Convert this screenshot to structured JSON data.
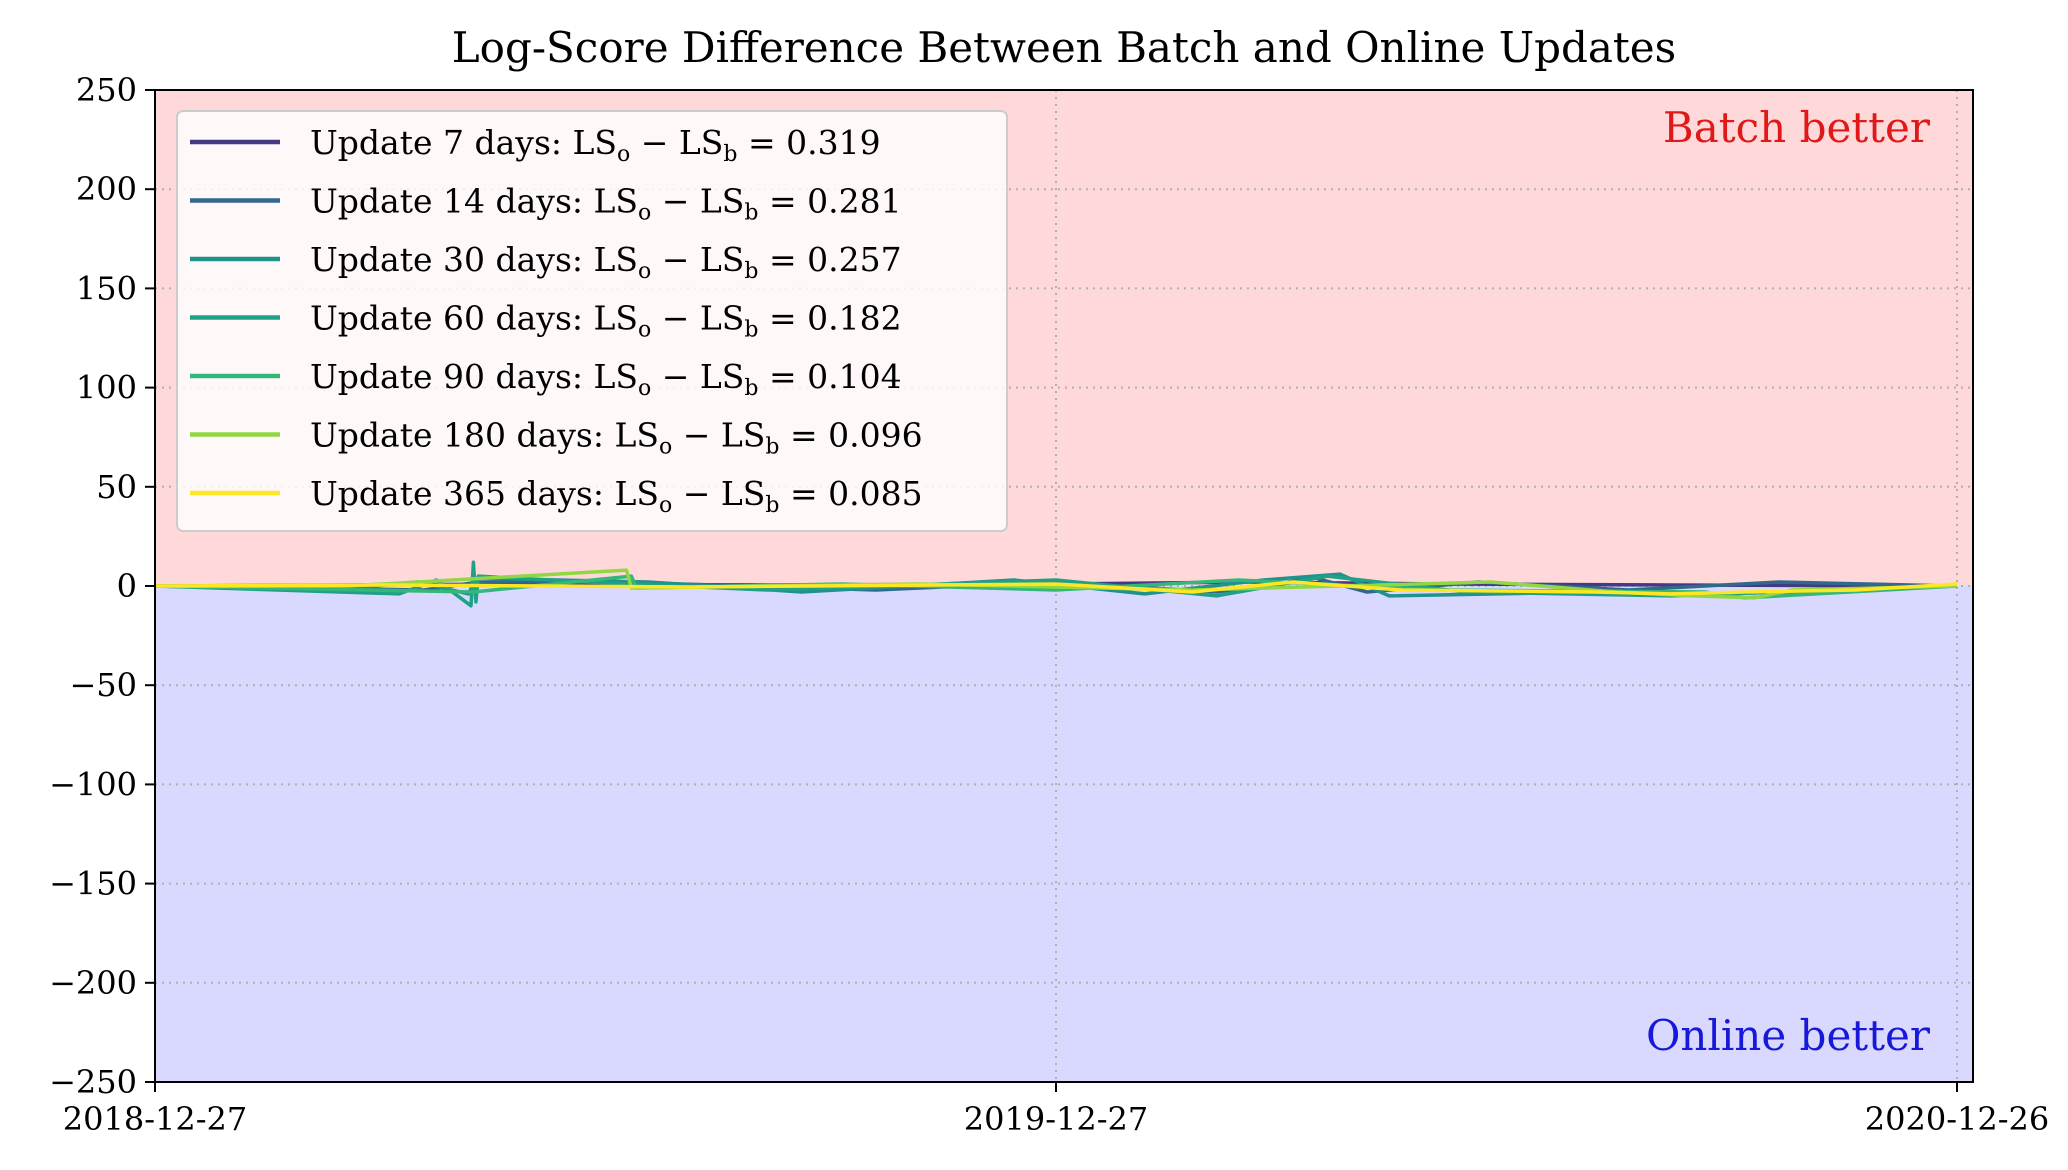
{
  "chart_data": {
    "type": "line",
    "title": "Log-Score Difference Between Batch and Online Updates",
    "xlabel": "",
    "ylabel": "",
    "x_range": [
      "2018-12-27",
      "2020-12-26"
    ],
    "x_ticks": [
      "2018-12-27",
      "2019-12-27",
      "2020-12-26"
    ],
    "ylim": [
      -250,
      250
    ],
    "y_ticks": [
      250,
      200,
      150,
      100,
      50,
      0,
      -50,
      -100,
      -150,
      -200,
      -250
    ],
    "y_tick_labels": [
      "250",
      "200",
      "150",
      "100",
      "50",
      "0",
      "−50",
      "−100",
      "−150",
      "−200",
      "−250"
    ],
    "grid": "dotted",
    "legend_position": "upper-left",
    "regions": [
      {
        "label": "Batch better",
        "y_from": 0,
        "y_to": 250,
        "fill": "#ffd9d9",
        "label_color": "#e01818"
      },
      {
        "label": "Online better",
        "y_from": -250,
        "y_to": 0,
        "fill": "#d9d9ff",
        "label_color": "#1818d8"
      }
    ],
    "legend_entries": [
      {
        "prefix": "Update 7 days:",
        "value": "0.319",
        "color": "#443983"
      },
      {
        "prefix": "Update 14 days:",
        "value": "0.281",
        "color": "#31688e"
      },
      {
        "prefix": "Update 30 days:",
        "value": "0.257",
        "color": "#21918c"
      },
      {
        "prefix": "Update 60 days:",
        "value": "0.182",
        "color": "#1fa187"
      },
      {
        "prefix": "Update 90 days:",
        "value": "0.104",
        "color": "#35b779"
      },
      {
        "prefix": "Update 180 days:",
        "value": "0.096",
        "color": "#90d743"
      },
      {
        "prefix": "Update 365 days:",
        "value": "0.085",
        "color": "#fde725"
      }
    ],
    "series": [
      {
        "color": "#443983",
        "points": [
          [
            "2018-12-27",
            0
          ],
          [
            "2019-03-15",
            0.5
          ],
          [
            "2019-06-01",
            1
          ],
          [
            "2019-09-01",
            0.5
          ],
          [
            "2019-12-27",
            1
          ],
          [
            "2020-03-15",
            2
          ],
          [
            "2020-06-01",
            1
          ],
          [
            "2020-09-01",
            0.5
          ],
          [
            "2020-12-26",
            0
          ]
        ]
      },
      {
        "color": "#31688e",
        "points": [
          [
            "2018-12-27",
            0
          ],
          [
            "2019-04-15",
            -2
          ],
          [
            "2019-05-07",
            2
          ],
          [
            "2019-07-01",
            2
          ],
          [
            "2019-10-15",
            -2
          ],
          [
            "2019-12-27",
            2
          ],
          [
            "2020-03-01",
            -3
          ],
          [
            "2020-04-10",
            4
          ],
          [
            "2020-05-01",
            -3
          ],
          [
            "2020-06-15",
            2
          ],
          [
            "2020-08-15",
            -2
          ],
          [
            "2020-10-15",
            2
          ],
          [
            "2020-12-26",
            0
          ]
        ]
      },
      {
        "color": "#21918c",
        "points": [
          [
            "2018-12-27",
            0
          ],
          [
            "2019-03-10",
            -2
          ],
          [
            "2019-04-12",
            2
          ],
          [
            "2019-05-03",
            -4
          ],
          [
            "2019-05-06",
            4
          ],
          [
            "2019-07-15",
            2
          ],
          [
            "2019-09-15",
            -3
          ],
          [
            "2019-12-10",
            3
          ],
          [
            "2020-02-01",
            -4
          ],
          [
            "2020-03-20",
            3
          ],
          [
            "2020-04-20",
            6
          ],
          [
            "2020-05-10",
            -5
          ],
          [
            "2020-08-01",
            -3
          ],
          [
            "2020-09-20",
            -4
          ],
          [
            "2020-12-26",
            0
          ]
        ]
      },
      {
        "color": "#1fa187",
        "points": [
          [
            "2018-12-27",
            0
          ],
          [
            "2019-04-05",
            -4
          ],
          [
            "2019-04-20",
            3
          ],
          [
            "2019-05-04",
            -10
          ],
          [
            "2019-05-05",
            12
          ],
          [
            "2019-05-06",
            -8
          ],
          [
            "2019-05-07",
            5
          ],
          [
            "2019-06-20",
            2
          ],
          [
            "2019-09-01",
            -2
          ],
          [
            "2019-12-27",
            3
          ],
          [
            "2020-03-01",
            -5
          ],
          [
            "2020-04-15",
            5
          ],
          [
            "2020-06-10",
            -3
          ],
          [
            "2020-09-01",
            -5
          ],
          [
            "2020-12-26",
            0
          ]
        ]
      },
      {
        "color": "#35b779",
        "points": [
          [
            "2018-12-27",
            0
          ],
          [
            "2019-05-05",
            -3
          ],
          [
            "2019-07-08",
            5
          ],
          [
            "2019-07-10",
            -1
          ],
          [
            "2019-10-01",
            1
          ],
          [
            "2019-12-27",
            -2
          ],
          [
            "2020-03-10",
            3
          ],
          [
            "2020-06-01",
            -2
          ],
          [
            "2020-09-15",
            -3
          ],
          [
            "2020-10-01",
            -6
          ],
          [
            "2020-12-26",
            0
          ]
        ]
      },
      {
        "color": "#90d743",
        "points": [
          [
            "2018-12-27",
            0
          ],
          [
            "2019-03-15",
            0
          ],
          [
            "2019-07-06",
            8
          ],
          [
            "2019-07-08",
            -1
          ],
          [
            "2019-11-01",
            1
          ],
          [
            "2020-02-20",
            -2
          ],
          [
            "2020-06-20",
            2
          ],
          [
            "2020-08-10",
            -3
          ],
          [
            "2020-09-10",
            -5
          ],
          [
            "2020-10-05",
            -6
          ],
          [
            "2020-10-20",
            -2
          ],
          [
            "2020-12-26",
            0
          ]
        ]
      },
      {
        "color": "#fde725",
        "points": [
          [
            "2018-12-27",
            0
          ],
          [
            "2019-04-01",
            0.5
          ],
          [
            "2019-08-01",
            -0.5
          ],
          [
            "2019-12-27",
            1
          ],
          [
            "2020-02-20",
            -3
          ],
          [
            "2020-04-01",
            2
          ],
          [
            "2020-05-15",
            -2
          ],
          [
            "2020-08-01",
            -3
          ],
          [
            "2020-09-01",
            -4
          ],
          [
            "2020-10-01",
            -3
          ],
          [
            "2020-11-15",
            -2
          ],
          [
            "2020-12-26",
            1
          ]
        ]
      }
    ]
  }
}
